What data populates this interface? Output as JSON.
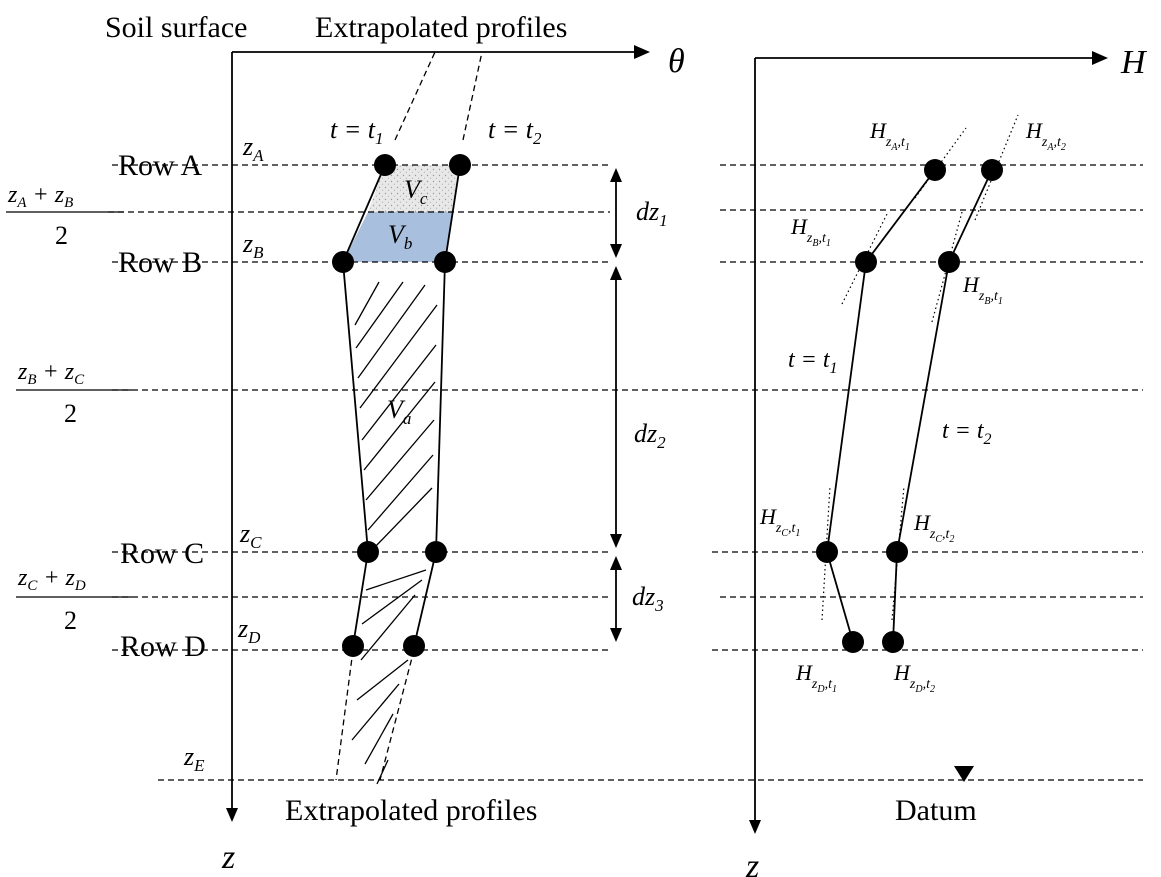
{
  "left_panel": {
    "top_left_label": "Soil surface",
    "top_right_label": "Extrapolated profiles",
    "bottom_label": "Extrapolated profiles",
    "axis_x": "θ",
    "axis_z": "z",
    "rows": [
      {
        "label": "Row A",
        "z_sym": "z",
        "z_sub": "A"
      },
      {
        "label": "Row B",
        "z_sym": "z",
        "z_sub": "B"
      },
      {
        "label": "Row C",
        "z_sym": "z",
        "z_sub": "C"
      },
      {
        "label": "Row D",
        "z_sym": "z",
        "z_sub": "D"
      }
    ],
    "z_e": {
      "sym": "z",
      "sub": "E"
    },
    "mid_fractions": [
      {
        "a": "A",
        "b": "B",
        "den": "2"
      },
      {
        "a": "B",
        "b": "C",
        "den": "2"
      },
      {
        "a": "C",
        "b": "D",
        "den": "2"
      }
    ],
    "time_labels": [
      "t = t",
      "t = t"
    ],
    "time_subs": [
      "1",
      "2"
    ],
    "volumes": [
      {
        "sym": "V",
        "sub": "c"
      },
      {
        "sym": "V",
        "sub": "b"
      },
      {
        "sym": "V",
        "sub": "a"
      }
    ],
    "dz": [
      {
        "sym": "dz",
        "sub": "1"
      },
      {
        "sym": "dz",
        "sub": "2"
      },
      {
        "sym": "dz",
        "sub": "3"
      }
    ]
  },
  "right_panel": {
    "axis_x": "H",
    "axis_z": "z",
    "datum": "Datum",
    "time_labels": [
      {
        "text": "t = t",
        "sub": "1"
      },
      {
        "text": "t = t",
        "sub": "2"
      }
    ],
    "point_labels": [
      {
        "row": "A",
        "t": "1"
      },
      {
        "row": "A",
        "t": "2"
      },
      {
        "row": "B",
        "t": "1"
      },
      {
        "row": "B",
        "t": "1"
      },
      {
        "row": "C",
        "t": "1"
      },
      {
        "row": "C",
        "t": "2"
      },
      {
        "row": "D",
        "t": "1"
      },
      {
        "row": "D",
        "t": "2"
      }
    ]
  },
  "colors": {
    "vb_fill": "#a9bfde",
    "vc_fill": "#e6e6e6",
    "ink": "#000000"
  }
}
